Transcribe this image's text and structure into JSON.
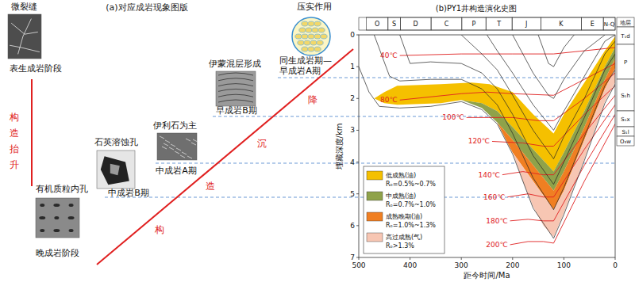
{
  "panel_a": {
    "title": "(a)对应成岩现象图版",
    "stages": [
      {
        "feature": "微裂缝",
        "stage": [
          "表生成岩阶段"
        ]
      },
      {
        "feature": "有机质粒内孔",
        "stage": [
          "晚成岩阶段"
        ]
      },
      {
        "feature": "石英溶蚀孔",
        "stage": [
          "中成岩B期"
        ]
      },
      {
        "feature": "伊利石为主",
        "stage": [
          "中成岩A期"
        ]
      },
      {
        "feature": "伊蒙混层形成",
        "stage": [
          "早成岩B期"
        ]
      },
      {
        "feature": "压实作用",
        "stage": [
          "同生成岩期—",
          "早成岩A期"
        ]
      }
    ],
    "uplift_label": "构造抬升",
    "subsidence_label": "构造沉降"
  },
  "chart_data": {
    "type": "area",
    "title": "(b)PY1井构造演化史图",
    "x_label": "距今时间/Ma",
    "y_label": "埋藏深度/km",
    "xlim": [
      500,
      0
    ],
    "ylim": [
      0,
      7
    ],
    "xticks": [
      500,
      400,
      300,
      200,
      100,
      0
    ],
    "yticks": [
      0,
      1,
      2,
      3,
      4,
      5,
      6,
      7
    ],
    "grid": false,
    "legend": "lower left",
    "periods": [
      {
        "name": "O",
        "start": 485,
        "end": 443
      },
      {
        "name": "S",
        "start": 443,
        "end": 419
      },
      {
        "name": "D",
        "start": 419,
        "end": 359
      },
      {
        "name": "C",
        "start": 359,
        "end": 299
      },
      {
        "name": "P",
        "start": 299,
        "end": 252
      },
      {
        "name": "T",
        "start": 252,
        "end": 201
      },
      {
        "name": "J",
        "start": 201,
        "end": 145
      },
      {
        "name": "K",
        "start": 145,
        "end": 66
      },
      {
        "name": "E",
        "start": 66,
        "end": 23
      },
      {
        "name": "N-Q",
        "start": 23,
        "end": 0
      }
    ],
    "strata_header": "地层",
    "strata": [
      "T₁d",
      "P",
      "S₁h",
      "S₁x",
      "S₁l",
      "O₃w"
    ],
    "series": [
      {
        "name": "低成熟(油)",
        "range_label": "Rₒ=0.5%~0.7%",
        "color": "#f5c000",
        "top_x": [
          470,
          450,
          425,
          340,
          280,
          245,
          200,
          160,
          120,
          100,
          60,
          20,
          0
        ],
        "top_y": [
          2.0,
          1.8,
          1.6,
          1.55,
          1.5,
          1.55,
          1.8,
          2.5,
          3.1,
          2.5,
          1.5,
          0.5,
          0.05
        ],
        "bottom_x": [
          470,
          450,
          425,
          340,
          300,
          260,
          230,
          200,
          160,
          120,
          100,
          60,
          20,
          0
        ],
        "bottom_y": [
          2.0,
          2.15,
          2.2,
          2.15,
          2.05,
          2.15,
          2.4,
          2.9,
          3.6,
          4.3,
          3.7,
          2.4,
          1.0,
          0.4
        ]
      },
      {
        "name": "中成熟(油)",
        "range_label": "Rₒ=0.7%~1.0%",
        "color": "#8fa24a",
        "top_x": [
          300,
          260,
          230,
          200,
          160,
          120,
          100,
          60,
          20,
          0
        ],
        "top_y": [
          2.05,
          2.15,
          2.4,
          2.9,
          3.6,
          4.3,
          3.7,
          2.4,
          1.0,
          0.4
        ],
        "bottom_x": [
          300,
          260,
          230,
          200,
          160,
          120,
          100,
          60,
          20,
          0
        ],
        "bottom_y": [
          2.05,
          2.3,
          2.75,
          3.3,
          4.1,
          4.9,
          4.3,
          2.9,
          1.4,
          0.75
        ]
      },
      {
        "name": "成熟晚期(油)",
        "range_label": "Rₒ=1.0%~1.3%",
        "color": "#f07f22",
        "top_x": [
          230,
          200,
          160,
          120,
          100,
          60,
          20,
          0
        ],
        "top_y": [
          2.75,
          3.3,
          4.1,
          4.9,
          4.3,
          2.9,
          1.4,
          0.75
        ],
        "bottom_x": [
          230,
          210,
          200,
          160,
          120,
          100,
          60,
          20,
          0
        ],
        "bottom_y": [
          2.75,
          3.4,
          3.7,
          4.6,
          5.5,
          4.9,
          3.3,
          1.7,
          1.05
        ]
      },
      {
        "name": "高过成熟(气)",
        "range_label": "Rₒ>1.3%",
        "color": "#f7c6b3",
        "top_x": [
          200,
          160,
          120,
          100,
          60,
          20,
          0
        ],
        "top_y": [
          3.7,
          4.6,
          5.5,
          4.9,
          3.3,
          1.7,
          1.05
        ],
        "bottom_x": [
          200,
          180,
          160,
          140,
          120,
          100,
          60,
          20,
          0
        ],
        "bottom_y": [
          3.7,
          4.6,
          5.4,
          6.0,
          6.35,
          5.6,
          3.9,
          2.1,
          1.5
        ]
      }
    ],
    "horizons": [
      {
        "x": [
          500,
          480,
          460,
          420,
          360,
          300,
          260,
          230,
          200,
          160,
          120,
          100,
          60,
          20,
          0
        ],
        "y": [
          1.0,
          1.8,
          2.25,
          2.3,
          2.25,
          2.1,
          2.35,
          2.8,
          3.75,
          5.45,
          6.4,
          5.65,
          3.95,
          2.15,
          1.55
        ]
      },
      {
        "x": [
          470,
          440,
          420,
          360,
          300,
          260,
          230,
          200,
          160,
          120,
          100,
          60,
          20,
          0
        ],
        "y": [
          0,
          1.3,
          1.45,
          1.4,
          1.4,
          1.7,
          2.2,
          3.1,
          4.5,
          5.5,
          4.8,
          3.2,
          1.6,
          1.1
        ]
      },
      {
        "x": [
          420,
          400,
          360,
          300,
          260,
          230,
          200,
          160,
          120,
          100,
          60,
          20,
          0
        ],
        "y": [
          0,
          0.9,
          0.85,
          0.9,
          1.2,
          1.7,
          2.5,
          3.8,
          4.7,
          4.0,
          2.6,
          1.1,
          0.6
        ]
      },
      {
        "x": [
          300,
          260,
          230,
          200,
          160,
          120,
          100,
          60,
          20,
          0
        ],
        "y": [
          0,
          0.6,
          1.1,
          1.9,
          3.0,
          3.9,
          3.2,
          2.0,
          0.6,
          0.2
        ]
      },
      {
        "x": [
          250,
          230,
          200,
          160,
          120,
          100,
          60,
          20,
          0
        ],
        "y": [
          0,
          0.5,
          1.2,
          2.2,
          3.0,
          2.4,
          1.3,
          0.2,
          0
        ]
      },
      {
        "x": [
          200,
          160,
          130,
          120,
          100,
          60,
          20
        ],
        "y": [
          0,
          1.2,
          1.9,
          2.0,
          1.4,
          0.5,
          0
        ]
      },
      {
        "x": [
          150,
          130,
          120,
          100,
          80
        ],
        "y": [
          0,
          0.9,
          1.0,
          0.4,
          0
        ]
      }
    ],
    "isotherms": [
      {
        "label": "40℃",
        "x": [
          420,
          300,
          200,
          120,
          60,
          0
        ],
        "y": [
          0.65,
          0.6,
          0.6,
          0.6,
          0.5,
          0.4
        ]
      },
      {
        "label": "80℃",
        "x": [
          420,
          300,
          250,
          200,
          120,
          60,
          0
        ],
        "y": [
          2.05,
          1.85,
          1.8,
          1.85,
          1.9,
          1.4,
          0.9
        ]
      },
      {
        "label": "100℃",
        "x": [
          290,
          200,
          150,
          120,
          60,
          0
        ],
        "y": [
          2.6,
          2.6,
          2.7,
          2.7,
          2.0,
          1.2
        ]
      },
      {
        "label": "120℃",
        "x": [
          240,
          180,
          140,
          120,
          60,
          0
        ],
        "y": [
          3.35,
          3.4,
          3.5,
          3.5,
          2.5,
          1.6
        ]
      },
      {
        "label": "140℃",
        "x": [
          220,
          180,
          140,
          120,
          60,
          0
        ],
        "y": [
          4.4,
          4.3,
          4.4,
          4.4,
          3.1,
          1.9
        ]
      },
      {
        "label": "160℃",
        "x": [
          210,
          170,
          140,
          120,
          60,
          0
        ],
        "y": [
          5.1,
          5.0,
          5.1,
          5.1,
          3.6,
          2.2
        ]
      },
      {
        "label": "180℃",
        "x": [
          205,
          170,
          140,
          120,
          60,
          0
        ],
        "y": [
          5.85,
          5.8,
          5.85,
          5.85,
          4.1,
          2.5
        ]
      },
      {
        "label": "200℃",
        "x": [
          205,
          170,
          140,
          120,
          60,
          0
        ],
        "y": [
          6.6,
          6.5,
          6.5,
          6.55,
          4.6,
          2.8
        ]
      }
    ]
  }
}
